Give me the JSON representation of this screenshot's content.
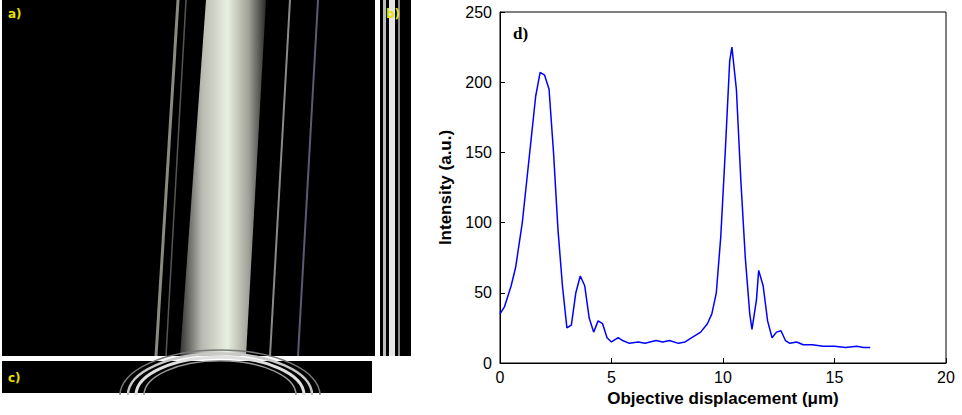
{
  "image_panels": [
    "a)",
    "b)",
    "c)"
  ],
  "chart_data": {
    "type": "line",
    "panel_label": "d)",
    "x_label": "Objective displacement (μm)",
    "y_label": "Intensity (a.u.)",
    "color": "#0000ff",
    "grid": false,
    "xlim": [
      0,
      20
    ],
    "ylim": [
      0,
      250
    ],
    "xticks": [
      0,
      5,
      10,
      15,
      20
    ],
    "yticks": [
      0,
      50,
      100,
      150,
      200,
      250
    ],
    "x": [
      0,
      0.2,
      0.5,
      0.7,
      1.0,
      1.2,
      1.4,
      1.6,
      1.8,
      2.0,
      2.2,
      2.4,
      2.6,
      2.8,
      3.0,
      3.2,
      3.4,
      3.6,
      3.8,
      4.0,
      4.2,
      4.4,
      4.6,
      4.8,
      5.0,
      5.3,
      5.5,
      5.8,
      6.2,
      6.5,
      7.0,
      7.3,
      7.6,
      8.0,
      8.3,
      8.6,
      9.0,
      9.3,
      9.5,
      9.7,
      9.9,
      10.1,
      10.3,
      10.4,
      10.6,
      10.8,
      11.0,
      11.2,
      11.3,
      11.5,
      11.6,
      11.8,
      12.0,
      12.2,
      12.4,
      12.6,
      12.8,
      13.0,
      13.3,
      13.6,
      14.0,
      14.5,
      15.0,
      15.5,
      16.0,
      16.3,
      16.6
    ],
    "values": [
      35,
      40,
      55,
      68,
      100,
      130,
      160,
      190,
      207,
      205,
      195,
      150,
      95,
      55,
      25,
      27,
      50,
      62,
      55,
      32,
      22,
      30,
      28,
      18,
      15,
      18,
      16,
      14,
      15,
      14,
      16,
      15,
      16,
      14,
      15,
      18,
      22,
      28,
      35,
      50,
      90,
      150,
      215,
      225,
      195,
      130,
      75,
      35,
      24,
      45,
      66,
      55,
      30,
      18,
      22,
      23,
      16,
      14,
      15,
      13,
      13,
      12,
      12,
      11,
      12,
      11,
      11
    ]
  }
}
